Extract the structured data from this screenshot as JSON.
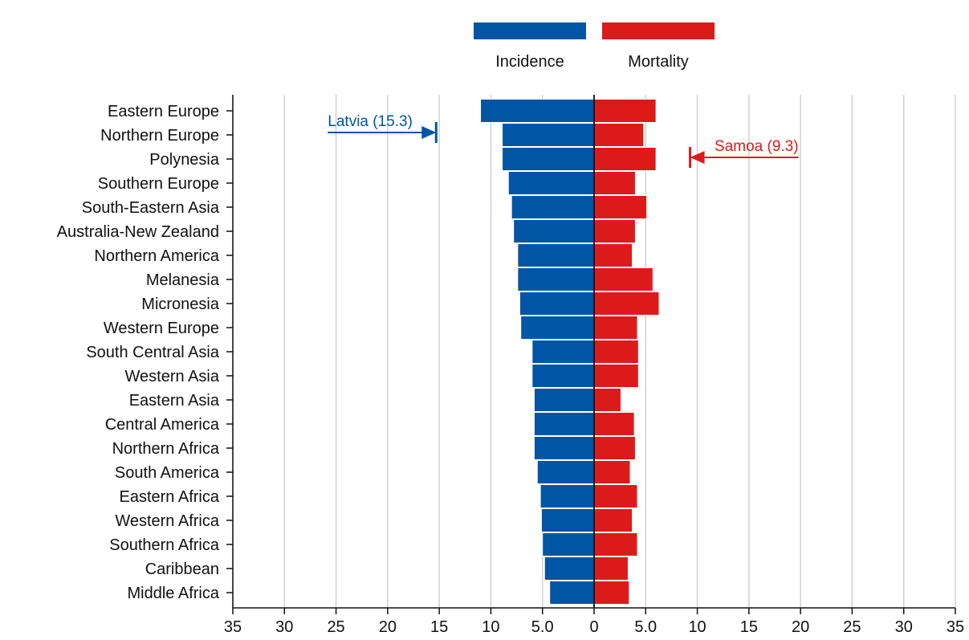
{
  "chart_data": {
    "type": "bar",
    "orientation": "horizontal-diverging",
    "categories": [
      "Eastern Europe",
      "Northern Europe",
      "Polynesia",
      "Southern Europe",
      "South-Eastern Asia",
      "Australia-New Zealand",
      "Northern America",
      "Melanesia",
      "Micronesia",
      "Western Europe",
      "South Central Asia",
      "Western Asia",
      "Eastern Asia",
      "Central America",
      "Northern Africa",
      "South America",
      "Eastern Africa",
      "Western Africa",
      "Southern Africa",
      "Caribbean",
      "Middle Africa"
    ],
    "series": [
      {
        "name": "Incidence",
        "color": "#0055a5",
        "direction": "left",
        "values": [
          11.0,
          8.9,
          8.9,
          8.3,
          8.0,
          7.8,
          7.4,
          7.4,
          7.2,
          7.1,
          6.0,
          6.0,
          5.8,
          5.8,
          5.8,
          5.5,
          5.2,
          5.1,
          5.0,
          4.8,
          4.3
        ]
      },
      {
        "name": "Mortality",
        "color": "#dd1a1a",
        "direction": "right",
        "values": [
          6.0,
          4.8,
          6.0,
          4.0,
          5.1,
          4.0,
          3.7,
          5.7,
          6.3,
          4.2,
          4.3,
          4.3,
          2.6,
          3.9,
          4.0,
          3.5,
          4.2,
          3.7,
          4.2,
          3.3,
          3.4
        ]
      }
    ],
    "x_ticks": [
      "35",
      "30",
      "25",
      "20",
      "15",
      "10",
      "5.0",
      "0",
      "5.0",
      "10",
      "15",
      "20",
      "25",
      "30",
      "35"
    ],
    "xlim": [
      -35,
      35
    ],
    "grid": true,
    "legend_position": "top",
    "annotations": [
      {
        "text": "Latvia (15.3)",
        "series": "Incidence",
        "value": 15.3,
        "row": 1,
        "color": "#0055a5"
      },
      {
        "text": "Samoa (9.3)",
        "series": "Mortality",
        "value": 9.3,
        "row": 2,
        "color": "#dd1a1a"
      }
    ],
    "title": "",
    "xlabel": "",
    "ylabel": ""
  }
}
